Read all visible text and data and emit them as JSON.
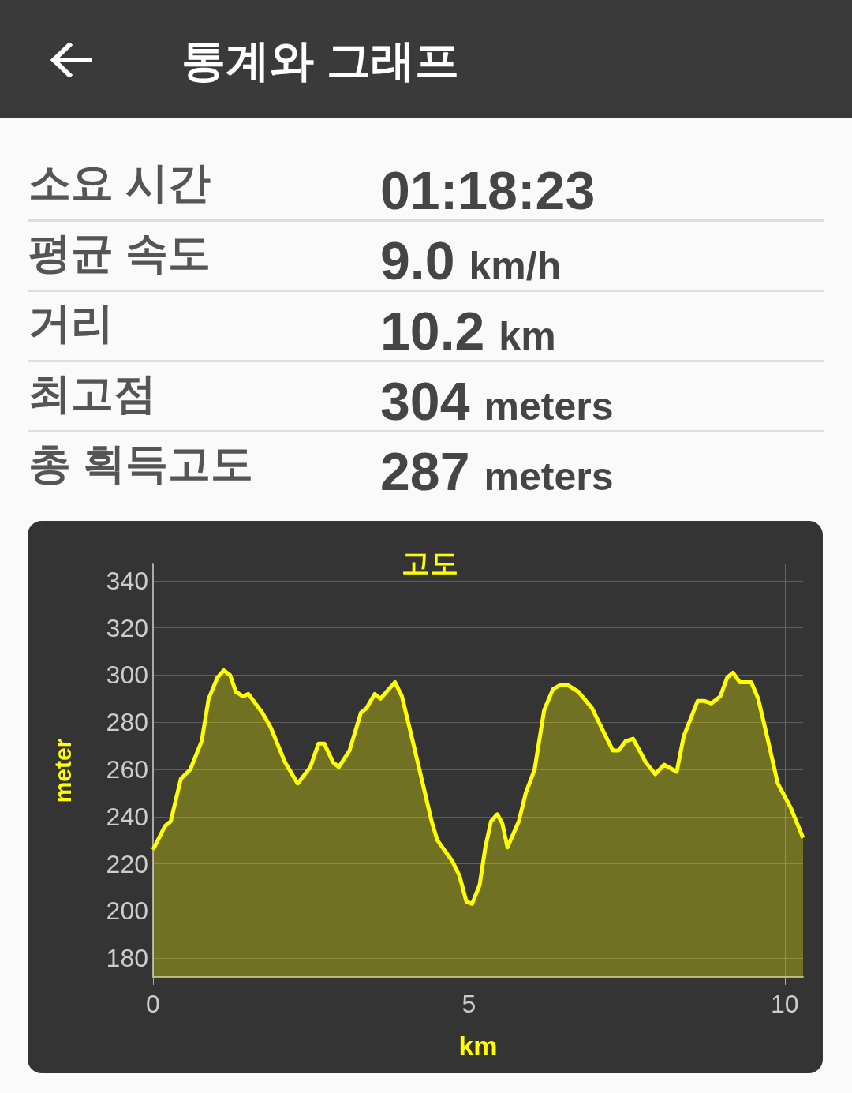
{
  "chart_data": [
    {
      "type": "other",
      "title": "통계와 그래프",
      "categories": [
        "소요 시간",
        "평균 속도",
        "거리",
        "최고점",
        "총 획득고도"
      ],
      "value_labels": [
        "01:18:23",
        "9.0 km/h",
        "10.2 km",
        "304 meters",
        "287 meters"
      ]
    },
    {
      "type": "area",
      "title": "고도",
      "xlabel": "km",
      "ylabel": "meter",
      "color": "#ffff00",
      "xlim": [
        0,
        10.29
      ],
      "xticks": [
        0,
        5,
        10
      ],
      "ylim": [
        172,
        347
      ],
      "yticks": [
        180,
        200,
        220,
        240,
        260,
        280,
        300,
        320,
        340
      ],
      "grid": true,
      "x": [
        0,
        0.19,
        0.28,
        0.44,
        0.59,
        0.77,
        0.88,
        1.02,
        1.12,
        1.22,
        1.31,
        1.42,
        1.51,
        1.73,
        1.86,
        2.09,
        2.29,
        2.49,
        2.62,
        2.71,
        2.85,
        2.94,
        3.11,
        3.29,
        3.38,
        3.51,
        3.6,
        3.83,
        3.94,
        4.12,
        4.41,
        4.5,
        4.74,
        4.85,
        4.96,
        5.05,
        5.17,
        5.26,
        5.35,
        5.45,
        5.53,
        5.61,
        5.79,
        5.9,
        6.04,
        6.19,
        6.33,
        6.46,
        6.55,
        6.73,
        6.95,
        7.13,
        7.28,
        7.37,
        7.48,
        7.6,
        7.8,
        7.95,
        8.09,
        8.29,
        8.4,
        8.62,
        8.73,
        8.84,
        8.98,
        9.09,
        9.18,
        9.29,
        9.47,
        9.58,
        9.72,
        9.89,
        10.09,
        10.29
      ],
      "values": [
        226,
        236,
        238,
        256,
        260,
        272,
        290,
        299,
        302,
        300,
        293,
        291,
        292,
        284,
        278,
        263,
        254,
        261,
        271,
        271,
        263,
        261,
        268,
        284,
        286,
        292,
        290,
        297,
        291,
        271,
        238,
        230,
        221,
        215,
        204,
        203,
        211,
        227,
        238,
        241,
        237,
        227,
        238,
        250,
        260,
        285,
        294,
        296,
        296,
        293,
        286,
        276,
        268,
        268,
        272,
        273,
        263,
        258,
        262,
        259,
        274,
        289,
        289,
        288,
        291,
        299,
        301,
        297,
        297,
        290,
        274,
        254,
        244,
        231
      ]
    }
  ]
}
